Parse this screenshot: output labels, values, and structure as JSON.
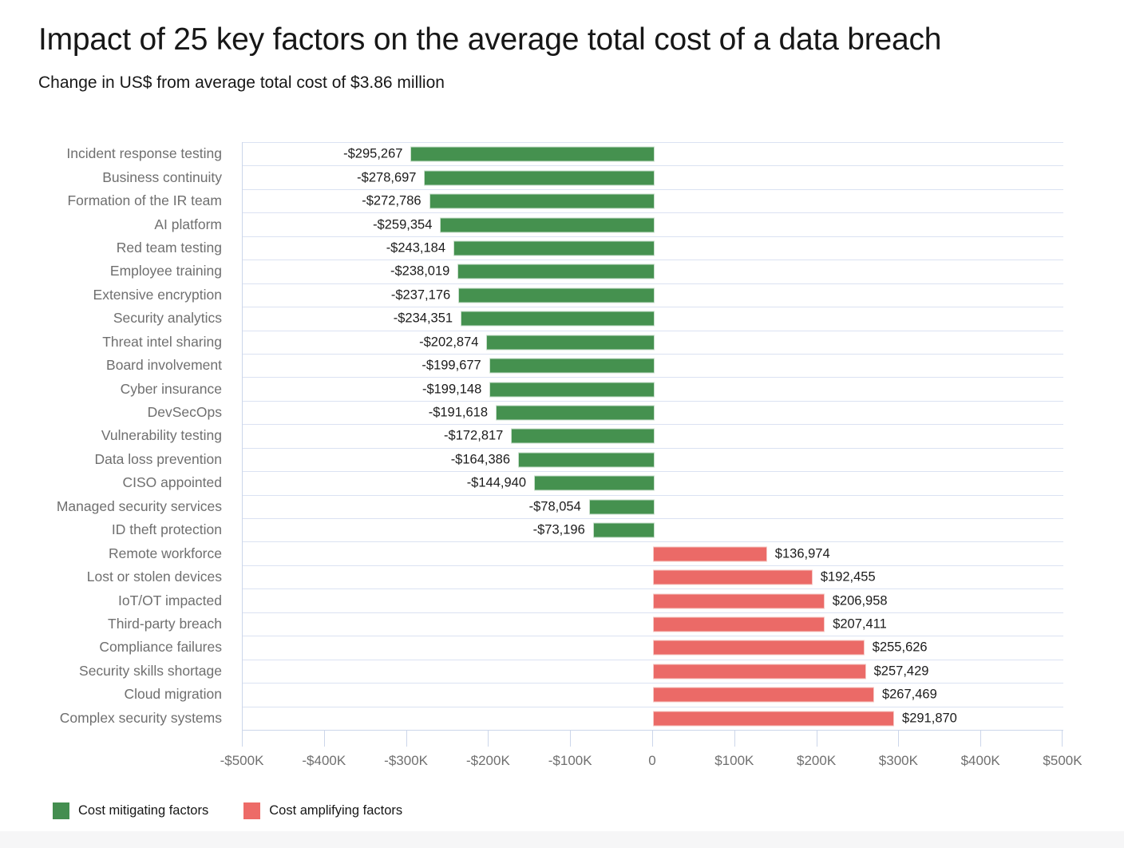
{
  "page": {
    "title": "Impact of 25 key factors on the average total cost of a data breach",
    "subtitle": "Change in US$ from average total cost of $3.86 million"
  },
  "colors": {
    "mitigating_bar": "#45914f",
    "amplifying_bar": "#eb6a67",
    "grid_line": "#dbe2f2",
    "axis_line": "#ccd6ea",
    "category_label": "#6f6f6f",
    "value_label": "#1c1c1c"
  },
  "legend": {
    "items": [
      {
        "label": "Cost mitigating factors",
        "color": "#448e50"
      },
      {
        "label": "Cost amplifying factors",
        "color": "#ed6b68"
      }
    ]
  },
  "chart_data": {
    "type": "bar",
    "orientation": "horizontal",
    "title": "Impact of 25 key factors on the average total cost of a data breach",
    "subtitle": "Change in US$ from average total cost of $3.86 million",
    "xlabel": "",
    "ylabel": "",
    "xlim": [
      -500000,
      500000
    ],
    "grid": "row-separators-only",
    "legend_position": "bottom-left",
    "categories": [
      "Incident response testing",
      "Business continuity",
      "Formation of the IR team",
      "AI platform",
      "Red team testing",
      "Employee training",
      "Extensive encryption",
      "Security analytics",
      "Threat intel sharing",
      "Board involvement",
      "Cyber insurance",
      "DevSecOps",
      "Vulnerability testing",
      "Data loss prevention",
      "CISO appointed",
      "Managed security services",
      "ID theft protection",
      "Remote workforce",
      "Lost or stolen devices",
      "IoT/OT impacted",
      "Third-party breach",
      "Compliance failures",
      "Security skills shortage",
      "Cloud migration",
      "Complex security systems"
    ],
    "values": [
      -295267,
      -278697,
      -272786,
      -259354,
      -243184,
      -238019,
      -237176,
      -234351,
      -202874,
      -199677,
      -199148,
      -191618,
      -172817,
      -164386,
      -144940,
      -78054,
      -73196,
      136974,
      192455,
      206958,
      207411,
      255626,
      257429,
      267469,
      291870
    ],
    "value_labels": [
      "-$295,267",
      "-$278,697",
      "-$272,786",
      "-$259,354",
      "-$243,184",
      "-$238,019",
      "-$237,176",
      "-$234,351",
      "-$202,874",
      "-$199,677",
      "-$199,148",
      "-$191,618",
      "-$172,817",
      "-$164,386",
      "-$144,940",
      "-$78,054",
      "-$73,196",
      "$136,974",
      "$192,455",
      "$206,958",
      "$207,411",
      "$255,626",
      "$257,429",
      "$267,469",
      "$291,870"
    ],
    "x_ticks": [
      {
        "value": -500000,
        "label": "-$500K"
      },
      {
        "value": -400000,
        "label": "-$400K"
      },
      {
        "value": -300000,
        "label": "-$300K"
      },
      {
        "value": -200000,
        "label": "-$200K"
      },
      {
        "value": -100000,
        "label": "-$100K"
      },
      {
        "value": 0,
        "label": "0"
      },
      {
        "value": 100000,
        "label": "$100K"
      },
      {
        "value": 200000,
        "label": "$200K"
      },
      {
        "value": 300000,
        "label": "$300K"
      },
      {
        "value": 400000,
        "label": "$400K"
      },
      {
        "value": 500000,
        "label": "$500K"
      }
    ]
  }
}
